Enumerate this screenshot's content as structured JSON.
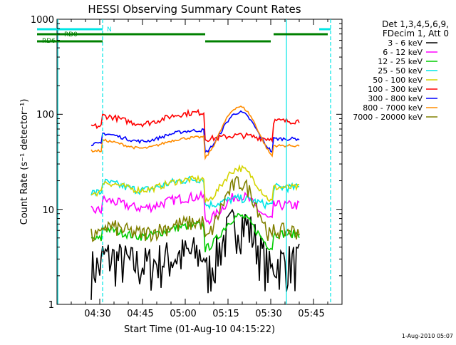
{
  "chart_data": {
    "type": "line",
    "title": "HESSI Observing Summary Count Rates",
    "xlabel": "Start Time (01-Aug-10 04:15:22)",
    "ylabel": "Count Rate (s⁻¹ detector⁻¹)",
    "yscale": "log",
    "ylim": [
      1,
      1000
    ],
    "xlim_minutes": [
      0,
      100
    ],
    "x_ticks": [
      "04:30",
      "04:45",
      "05:00",
      "05:15",
      "05:30",
      "05:45"
    ],
    "y_ticks": [
      "1",
      "10",
      "100",
      "1000"
    ],
    "legend_header": [
      "Det 1,3,4,5,6,9,",
      "FDecim 1, Att 0"
    ],
    "legend_position": "right",
    "footer_date": "1-Aug-2010 05:07",
    "flags": [
      {
        "label": "N",
        "color": "#00e5e5",
        "segments": [
          [
            0,
            16
          ],
          [
            92,
            96
          ]
        ]
      },
      {
        "label": "RD0",
        "color": "#008000",
        "segments": [
          [
            0,
            17
          ],
          [
            17,
            52
          ],
          [
            76,
            95
          ]
        ]
      },
      {
        "label": "RD6",
        "color": "#008000",
        "segments": [
          [
            0,
            16
          ],
          [
            52,
            75
          ],
          [
            96,
            96
          ]
        ]
      }
    ],
    "series": [
      {
        "name": "3 - 6 keV",
        "color": "#000000",
        "values_outer": 3.3,
        "values_peak": 7.5
      },
      {
        "name": "6 - 12 keV",
        "color": "#ff00ff",
        "values_outer": 13,
        "values_peak": 14
      },
      {
        "name": "12 - 25 keV",
        "color": "#00cc00",
        "values_outer": 6.5,
        "values_peak": 8.5
      },
      {
        "name": "25 - 50 keV",
        "color": "#00e5e5",
        "values_outer": 20,
        "values_peak": 13
      },
      {
        "name": "50 - 100 keV",
        "color": "#d4d400",
        "values_outer": 20,
        "values_peak": 27
      },
      {
        "name": "100 - 300 keV",
        "color": "#ff0000",
        "values_outer": 100,
        "values_peak": 60
      },
      {
        "name": "300 - 800 keV",
        "color": "#0000ff",
        "values_outer": 65,
        "values_peak": 105
      },
      {
        "name": "800 - 7000 keV",
        "color": "#ff8c00",
        "values_outer": 55,
        "values_peak": 120
      },
      {
        "name": "7000 - 20000 keV",
        "color": "#808000",
        "values_outer": 7,
        "values_peak": 19
      }
    ]
  }
}
